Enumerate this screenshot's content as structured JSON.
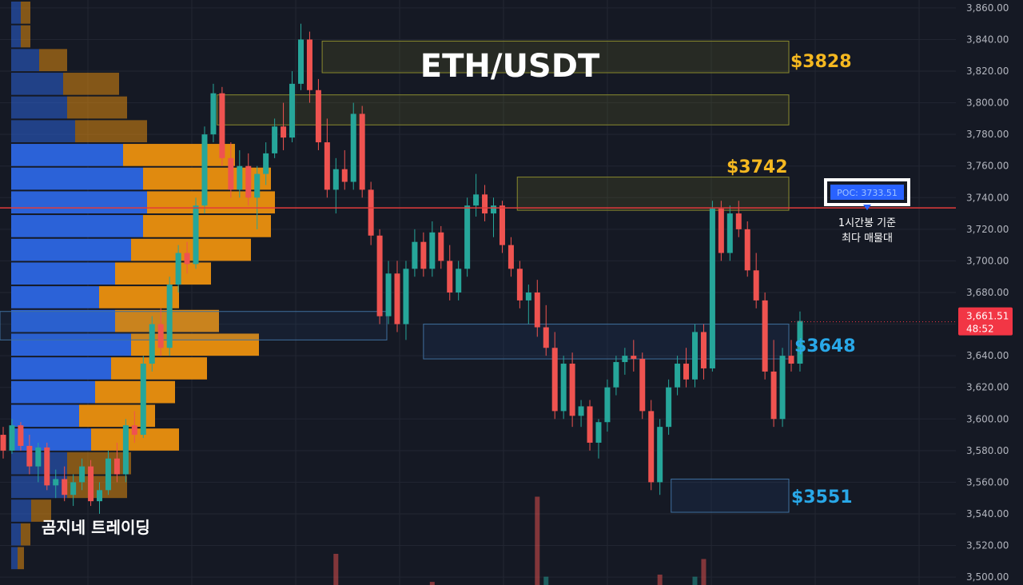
{
  "chart_data": {
    "type": "candlestick",
    "title": "ETH/USDT",
    "brand": "곰지네 트레이딩",
    "ylim": [
      3495,
      3865
    ],
    "y_ticks": [
      "3,860.00",
      "3,840.00",
      "3,820.00",
      "3,800.00",
      "3,780.00",
      "3,760.00",
      "3,740.00",
      "3,720.00",
      "3,700.00",
      "3,680.00",
      "3,660.00",
      "3,640.00",
      "3,620.00",
      "3,600.00",
      "3,580.00",
      "3,560.00",
      "3,540.00",
      "3,520.00",
      "3,500.00"
    ],
    "y_tick_values": [
      3860,
      3840,
      3820,
      3800,
      3780,
      3760,
      3740,
      3720,
      3700,
      3680,
      3660,
      3640,
      3620,
      3600,
      3580,
      3560,
      3540,
      3520,
      3500
    ],
    "current_price": {
      "price": "3,661.51",
      "countdown": "48:52",
      "value": 3661.51
    },
    "poc": {
      "label": "POC: 3733.51",
      "value": 3733.51,
      "note_line1": "1시간봉 기준",
      "note_line2": "최다 매물대"
    },
    "zones": [
      {
        "name": "zone-3828",
        "label": "$3828",
        "low": 3819,
        "high": 3839,
        "x_start": 85,
        "x_end": 210,
        "kind": "resistance",
        "show_label": true
      },
      {
        "name": "zone-upper-2",
        "label": "",
        "low": 3786,
        "high": 3805,
        "x_start": 57,
        "x_end": 155,
        "kind": "resistance",
        "show_label": false
      },
      {
        "name": "zone-3742",
        "label": "$3742",
        "low": 3732,
        "high": 3753,
        "x_start": 137,
        "x_end": 210,
        "kind": "resistance",
        "show_label": true
      },
      {
        "name": "zone-3648",
        "label": "$3648",
        "low": 3638,
        "high": 3660,
        "x_start": 112,
        "x_end": 210,
        "kind": "support",
        "show_label": true
      },
      {
        "name": "zone-3551",
        "label": "$3551",
        "low": 3541,
        "high": 3562,
        "x_start": 178,
        "x_end": 210,
        "kind": "support",
        "show_label": true
      }
    ],
    "volume_profile_levels": [
      {
        "price": 3857,
        "up": 0.012,
        "down": 0.012
      },
      {
        "price": 3842,
        "up": 0.012,
        "down": 0.012
      },
      {
        "price": 3827,
        "up": 0.035,
        "down": 0.035
      },
      {
        "price": 3812,
        "up": 0.065,
        "down": 0.07
      },
      {
        "price": 3797,
        "up": 0.07,
        "down": 0.075
      },
      {
        "price": 3782,
        "up": 0.08,
        "down": 0.09
      },
      {
        "price": 3767,
        "up": 0.14,
        "down": 0.14
      },
      {
        "price": 3752,
        "up": 0.165,
        "down": 0.16
      },
      {
        "price": 3737,
        "up": 0.17,
        "down": 0.16
      },
      {
        "price": 3722,
        "up": 0.165,
        "down": 0.16
      },
      {
        "price": 3707,
        "up": 0.15,
        "down": 0.15
      },
      {
        "price": 3692,
        "up": 0.13,
        "down": 0.12
      },
      {
        "price": 3677,
        "up": 0.11,
        "down": 0.1
      },
      {
        "price": 3662,
        "up": 0.13,
        "down": 0.13
      },
      {
        "price": 3647,
        "up": 0.15,
        "down": 0.16
      },
      {
        "price": 3632,
        "up": 0.125,
        "down": 0.12
      },
      {
        "price": 3617,
        "up": 0.105,
        "down": 0.1
      },
      {
        "price": 3602,
        "up": 0.085,
        "down": 0.095
      },
      {
        "price": 3587,
        "up": 0.1,
        "down": 0.11
      },
      {
        "price": 3572,
        "up": 0.07,
        "down": 0.08
      },
      {
        "price": 3557,
        "up": 0.07,
        "down": 0.075
      },
      {
        "price": 3542,
        "up": 0.025,
        "down": 0.025
      },
      {
        "price": 3527,
        "up": 0.012,
        "down": 0.012
      },
      {
        "price": 3512,
        "up": 0.008,
        "down": 0.008
      }
    ],
    "candles": [
      [
        3590,
        3595,
        3575,
        3580
      ],
      [
        3580,
        3600,
        3578,
        3596
      ],
      [
        3596,
        3598,
        3580,
        3583
      ],
      [
        3583,
        3590,
        3565,
        3570
      ],
      [
        3570,
        3585,
        3560,
        3582
      ],
      [
        3582,
        3585,
        3555,
        3558
      ],
      [
        3558,
        3568,
        3550,
        3562
      ],
      [
        3562,
        3570,
        3548,
        3552
      ],
      [
        3552,
        3565,
        3545,
        3560
      ],
      [
        3560,
        3575,
        3555,
        3570
      ],
      [
        3570,
        3574,
        3545,
        3548
      ],
      [
        3548,
        3560,
        3540,
        3555
      ],
      [
        3555,
        3580,
        3552,
        3575
      ],
      [
        3575,
        3585,
        3560,
        3565
      ],
      [
        3565,
        3600,
        3560,
        3596
      ],
      [
        3596,
        3605,
        3585,
        3590
      ],
      [
        3590,
        3640,
        3588,
        3635
      ],
      [
        3635,
        3665,
        3630,
        3660
      ],
      [
        3660,
        3670,
        3640,
        3645
      ],
      [
        3645,
        3690,
        3640,
        3685
      ],
      [
        3685,
        3710,
        3680,
        3705
      ],
      [
        3705,
        3712,
        3692,
        3698
      ],
      [
        3698,
        3740,
        3695,
        3735
      ],
      [
        3735,
        3785,
        3730,
        3780
      ],
      [
        3780,
        3812,
        3775,
        3806
      ],
      [
        3806,
        3810,
        3760,
        3765
      ],
      [
        3765,
        3775,
        3740,
        3745
      ],
      [
        3745,
        3770,
        3740,
        3760
      ],
      [
        3760,
        3768,
        3735,
        3740
      ],
      [
        3740,
        3760,
        3720,
        3755
      ],
      [
        3755,
        3775,
        3748,
        3768
      ],
      [
        3768,
        3790,
        3765,
        3785
      ],
      [
        3785,
        3800,
        3770,
        3778
      ],
      [
        3778,
        3820,
        3775,
        3812
      ],
      [
        3812,
        3850,
        3808,
        3840
      ],
      [
        3840,
        3845,
        3800,
        3808
      ],
      [
        3808,
        3815,
        3770,
        3775
      ],
      [
        3775,
        3790,
        3740,
        3745
      ],
      [
        3745,
        3765,
        3730,
        3758
      ],
      [
        3758,
        3770,
        3745,
        3750
      ],
      [
        3750,
        3800,
        3745,
        3793
      ],
      [
        3793,
        3798,
        3740,
        3745
      ],
      [
        3745,
        3750,
        3710,
        3716
      ],
      [
        3716,
        3720,
        3660,
        3665
      ],
      [
        3665,
        3700,
        3660,
        3692
      ],
      [
        3692,
        3700,
        3655,
        3660
      ],
      [
        3660,
        3700,
        3650,
        3695
      ],
      [
        3695,
        3720,
        3690,
        3712
      ],
      [
        3712,
        3718,
        3690,
        3695
      ],
      [
        3695,
        3725,
        3690,
        3718
      ],
      [
        3718,
        3722,
        3695,
        3700
      ],
      [
        3700,
        3710,
        3675,
        3680
      ],
      [
        3680,
        3700,
        3675,
        3695
      ],
      [
        3695,
        3740,
        3690,
        3735
      ],
      [
        3735,
        3755,
        3728,
        3742
      ],
      [
        3742,
        3748,
        3725,
        3730
      ],
      [
        3730,
        3740,
        3715,
        3735
      ],
      [
        3735,
        3738,
        3705,
        3710
      ],
      [
        3710,
        3715,
        3690,
        3695
      ],
      [
        3695,
        3700,
        3670,
        3675
      ],
      [
        3675,
        3685,
        3660,
        3680
      ],
      [
        3680,
        3688,
        3652,
        3658
      ],
      [
        3658,
        3672,
        3640,
        3645
      ],
      [
        3645,
        3655,
        3600,
        3605
      ],
      [
        3605,
        3640,
        3600,
        3635
      ],
      [
        3635,
        3642,
        3595,
        3602
      ],
      [
        3602,
        3612,
        3595,
        3608
      ],
      [
        3608,
        3612,
        3580,
        3585
      ],
      [
        3585,
        3600,
        3575,
        3598
      ],
      [
        3598,
        3625,
        3592,
        3620
      ],
      [
        3620,
        3640,
        3615,
        3636
      ],
      [
        3636,
        3645,
        3628,
        3640
      ],
      [
        3640,
        3650,
        3630,
        3638
      ],
      [
        3638,
        3642,
        3600,
        3605
      ],
      [
        3605,
        3612,
        3555,
        3560
      ],
      [
        3560,
        3600,
        3552,
        3595
      ],
      [
        3595,
        3625,
        3590,
        3620
      ],
      [
        3620,
        3640,
        3615,
        3635
      ],
      [
        3635,
        3645,
        3620,
        3625
      ],
      [
        3625,
        3660,
        3620,
        3655
      ],
      [
        3655,
        3660,
        3625,
        3632
      ],
      [
        3632,
        3738,
        3630,
        3733
      ],
      [
        3733,
        3738,
        3700,
        3705
      ],
      [
        3705,
        3735,
        3700,
        3730
      ],
      [
        3730,
        3738,
        3715,
        3720
      ],
      [
        3720,
        3725,
        3690,
        3694
      ],
      [
        3694,
        3705,
        3670,
        3675
      ],
      [
        3675,
        3680,
        3625,
        3630
      ],
      [
        3630,
        3650,
        3595,
        3600
      ],
      [
        3600,
        3645,
        3595,
        3640
      ],
      [
        3640,
        3650,
        3630,
        3635
      ],
      [
        3635,
        3668,
        3630,
        3662
      ]
    ],
    "x_range": [
      0,
      90
    ],
    "volume_bars": [
      {
        "i": 38,
        "value": 0.3,
        "dir": "down"
      },
      {
        "i": 61,
        "value": 0.85,
        "dir": "down"
      },
      {
        "i": 62,
        "value": 0.08,
        "dir": "up"
      },
      {
        "i": 75,
        "value": 0.1,
        "dir": "down"
      },
      {
        "i": 80,
        "value": 0.25,
        "dir": "down"
      },
      {
        "i": 79,
        "value": 0.08,
        "dir": "up"
      },
      {
        "i": 49,
        "value": 0.03,
        "dir": "down"
      }
    ],
    "colors": {
      "background": "#151924",
      "grid": "#222632",
      "up": "#26a69a",
      "down": "#ef5350",
      "profile_up": "#2b62d8",
      "profile_down": "#e08a0f",
      "resistance_border": "#8a8a2e",
      "support_border": "#3f6f9e",
      "gold": "#f5b820",
      "blue": "#29a8e8",
      "poc_line": "#e23b3b",
      "price_tag": "#f23645",
      "poc_box": "#2962ff"
    }
  }
}
